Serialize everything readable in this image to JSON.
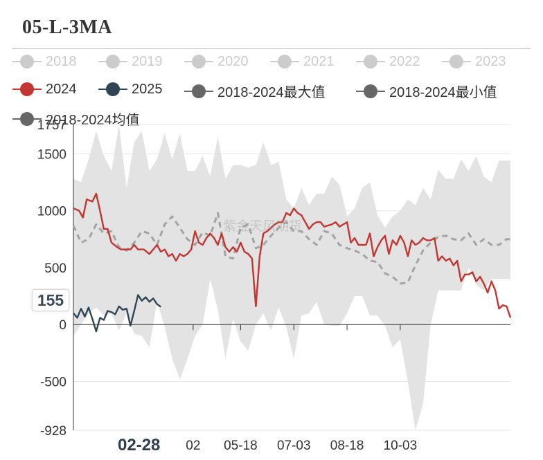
{
  "title": "05-L-3MA",
  "legend": [
    {
      "name": "2018",
      "color": "#cccccc",
      "active": false
    },
    {
      "name": "2019",
      "color": "#cccccc",
      "active": false
    },
    {
      "name": "2020",
      "color": "#cccccc",
      "active": false
    },
    {
      "name": "2021",
      "color": "#cccccc",
      "active": false
    },
    {
      "name": "2022",
      "color": "#cccccc",
      "active": false
    },
    {
      "name": "2023",
      "color": "#cccccc",
      "active": false
    },
    {
      "name": "2024",
      "color": "#c23531",
      "active": true
    },
    {
      "name": "2025",
      "color": "#2f4554",
      "active": true
    },
    {
      "name": "2018-2024最大值",
      "color": "#666666",
      "active": true
    },
    {
      "name": "2018-2024最小值",
      "color": "#666666",
      "active": true
    },
    {
      "name": "2018-2024均值",
      "color": "#666666",
      "active": true
    }
  ],
  "watermark": "紫金天风期货",
  "tooltip_value": "155",
  "x_selected_label": "02-28",
  "chart_data": {
    "type": "line",
    "title": "05-L-3MA",
    "ylim": [
      -928,
      1757
    ],
    "y_ticks": [
      1757,
      1500,
      1000,
      500,
      0,
      -500,
      -928
    ],
    "x_tick_labels": [
      "02",
      "05-18",
      "07-03",
      "08-18",
      "10-03"
    ],
    "x_index_range": [
      0,
      230
    ],
    "x_tick_indices": [
      63,
      88,
      116,
      144,
      172
    ],
    "band": {
      "name": "2018-2024 max/min range",
      "x": [
        0,
        4,
        8,
        12,
        16,
        20,
        24,
        28,
        32,
        36,
        40,
        44,
        48,
        52,
        56,
        60,
        64,
        68,
        72,
        76,
        80,
        84,
        88,
        92,
        96,
        100,
        104,
        108,
        112,
        116,
        120,
        124,
        128,
        132,
        136,
        140,
        144,
        148,
        152,
        156,
        160,
        164,
        168,
        172,
        176,
        180,
        184,
        188,
        192,
        196,
        200,
        204,
        208,
        212,
        216,
        220,
        224,
        228,
        230
      ],
      "max": [
        1280,
        1250,
        1450,
        1700,
        1480,
        1350,
        1750,
        1200,
        1600,
        1700,
        1350,
        1450,
        1680,
        1450,
        1680,
        1350,
        1350,
        1480,
        1300,
        1650,
        1280,
        1400,
        1400,
        1380,
        1400,
        1600,
        1400,
        1430,
        1100,
        1020,
        1200,
        1050,
        1150,
        1150,
        1300,
        1230,
        950,
        1020,
        1200,
        1250,
        960,
        850,
        950,
        1000,
        1100,
        1050,
        1200,
        1100,
        1360,
        1280,
        1280,
        1450,
        1350,
        1480,
        1300,
        1250,
        1440,
        1440,
        1440
      ],
      "min": [
        -100,
        0,
        100,
        150,
        80,
        100,
        -50,
        100,
        -80,
        -100,
        -200,
        200,
        -20,
        -300,
        -480,
        -300,
        -100,
        0,
        400,
        130,
        -300,
        50,
        -150,
        -230,
        0,
        100,
        -50,
        150,
        -20,
        -300,
        80,
        100,
        200,
        0,
        -10,
        -10,
        100,
        250,
        250,
        80,
        80,
        -10,
        -200,
        -130,
        -500,
        -930,
        -700,
        0,
        300,
        300,
        300,
        300,
        500,
        350,
        300,
        400,
        400,
        400,
        400
      ]
    },
    "series": [
      {
        "name": "2018-2024均值",
        "style": "dashed",
        "x": [
          0,
          4,
          8,
          12,
          16,
          20,
          24,
          28,
          32,
          36,
          40,
          44,
          48,
          52,
          56,
          60,
          64,
          68,
          72,
          76,
          80,
          84,
          88,
          92,
          96,
          100,
          104,
          108,
          112,
          116,
          120,
          124,
          128,
          132,
          136,
          140,
          144,
          148,
          152,
          156,
          160,
          164,
          168,
          172,
          176,
          180,
          184,
          188,
          192,
          196,
          200,
          204,
          208,
          212,
          216,
          220,
          224,
          228,
          230
        ],
        "values": [
          870,
          720,
          750,
          880,
          800,
          820,
          680,
          650,
          720,
          820,
          800,
          700,
          880,
          950,
          850,
          750,
          700,
          810,
          780,
          980,
          600,
          580,
          850,
          880,
          670,
          700,
          780,
          850,
          900,
          820,
          820,
          750,
          700,
          820,
          800,
          700,
          670,
          650,
          620,
          560,
          550,
          450,
          420,
          360,
          370,
          520,
          650,
          720,
          770,
          780,
          750,
          740,
          800,
          700,
          750,
          700,
          700,
          750,
          750
        ]
      },
      {
        "name": "2024",
        "style": "solid",
        "x": [
          0,
          3,
          5,
          7,
          10,
          12,
          14,
          16,
          18,
          20,
          23,
          25,
          28,
          30,
          32,
          34,
          37,
          40,
          42,
          44,
          46,
          48,
          50,
          52,
          54,
          56,
          58,
          60,
          62,
          64,
          66,
          68,
          70,
          72,
          74,
          76,
          78,
          80,
          82,
          84,
          86,
          88,
          90,
          92,
          94,
          96,
          98,
          100,
          102,
          104,
          106,
          108,
          110,
          112,
          114,
          116,
          118,
          120,
          122,
          124,
          126,
          128,
          130,
          132,
          134,
          136,
          138,
          140,
          142,
          144,
          146,
          148,
          150,
          152,
          154,
          156,
          158,
          160,
          162,
          164,
          166,
          168,
          170,
          172,
          174,
          176,
          178,
          180,
          182,
          184,
          186,
          188,
          190,
          192,
          194,
          196,
          198,
          200,
          202,
          204,
          206,
          208,
          210,
          212,
          214,
          216,
          218,
          220,
          222,
          224,
          226,
          228,
          230
        ],
        "values": [
          1020,
          1000,
          940,
          1100,
          1080,
          1150,
          1000,
          840,
          840,
          720,
          680,
          660,
          660,
          660,
          700,
          660,
          660,
          620,
          660,
          700,
          640,
          660,
          600,
          620,
          560,
          620,
          600,
          620,
          660,
          820,
          720,
          700,
          760,
          800,
          760,
          700,
          800,
          680,
          640,
          680,
          640,
          720,
          640,
          620,
          580,
          160,
          600,
          800,
          820,
          850,
          880,
          900,
          900,
          980,
          960,
          1020,
          980,
          960,
          900,
          840,
          880,
          900,
          900,
          860,
          870,
          880,
          900,
          860,
          880,
          900,
          720,
          760,
          700,
          700,
          700,
          800,
          600,
          680,
          740,
          780,
          620,
          740,
          700,
          780,
          720,
          600,
          740,
          700,
          720,
          760,
          740,
          740,
          760,
          560,
          600,
          560,
          580,
          520,
          560,
          380,
          440,
          440,
          460,
          380,
          420,
          360,
          280,
          380,
          300,
          140,
          170,
          160,
          60
        ],
        "color": "#c23531"
      },
      {
        "name": "2025",
        "style": "solid",
        "x": [
          0,
          2,
          4,
          6,
          8,
          10,
          12,
          14,
          16,
          18,
          20,
          22,
          24,
          26,
          28,
          30,
          32,
          34,
          36,
          38,
          40,
          42,
          44,
          46
        ],
        "values": [
          100,
          60,
          140,
          70,
          150,
          50,
          -60,
          60,
          40,
          120,
          110,
          90,
          160,
          130,
          140,
          -10,
          120,
          260,
          210,
          240,
          200,
          230,
          180,
          155
        ],
        "color": "#2f4554"
      }
    ]
  }
}
